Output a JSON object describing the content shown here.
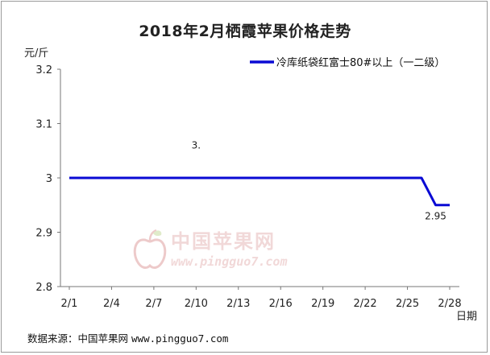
{
  "chart_data": {
    "type": "line",
    "title": "2018年2月栖霞苹果价格走势",
    "ylabel": "元/斤",
    "xlabel": "日期",
    "ylim": [
      2.8,
      3.2
    ],
    "y_ticks": [
      "2.8",
      "2.9",
      "3",
      "3.1",
      "3.2"
    ],
    "x_ticks": [
      "2/1",
      "2/4",
      "2/7",
      "2/10",
      "2/13",
      "2/16",
      "2/19",
      "2/22",
      "2/25",
      "2/28"
    ],
    "series": [
      {
        "name": "冷库纸袋红富士80#以上（一二级）",
        "color": "#0a0ad4",
        "x": [
          "2/1",
          "2/2",
          "2/3",
          "2/4",
          "2/5",
          "2/6",
          "2/7",
          "2/8",
          "2/9",
          "2/10",
          "2/11",
          "2/12",
          "2/13",
          "2/14",
          "2/15",
          "2/16",
          "2/17",
          "2/18",
          "2/19",
          "2/20",
          "2/21",
          "2/22",
          "2/23",
          "2/24",
          "2/25",
          "2/26",
          "2/27",
          "2/28"
        ],
        "values": [
          3,
          3,
          3,
          3,
          3,
          3,
          3,
          3,
          3,
          3,
          3,
          3,
          3,
          3,
          3,
          3,
          3,
          3,
          3,
          3,
          3,
          3,
          3,
          3,
          3,
          3,
          2.95,
          2.95
        ]
      }
    ],
    "annotations": [
      {
        "text": "3.",
        "x": "2/10",
        "y": 3.06
      },
      {
        "text": "2.95",
        "x": "2/27",
        "y": 2.93
      }
    ],
    "legend_position": "top-right",
    "grid": false
  },
  "watermark": {
    "text": "中国苹果网",
    "url": "www.pingguo7.com",
    "color": "#e7b9b9"
  },
  "footer": {
    "label": "数据来源：中国苹果网",
    "site": "www.pingguo7.com"
  }
}
